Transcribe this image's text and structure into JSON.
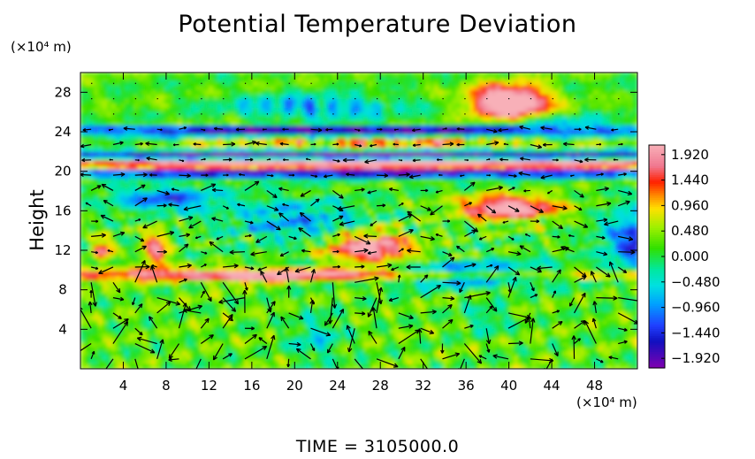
{
  "chart_data": {
    "type": "heatmap",
    "title": "Potential Temperature Deviation",
    "ylabel": "Height",
    "x_unit": "(×10⁴ m)",
    "y_unit": "(×10⁴ m)",
    "x_range": [
      0,
      52
    ],
    "y_range": [
      0,
      30
    ],
    "x_ticks": [
      4,
      8,
      12,
      16,
      20,
      24,
      28,
      32,
      36,
      40,
      44,
      48
    ],
    "y_ticks": [
      4,
      8,
      12,
      16,
      20,
      24,
      28
    ],
    "colorbar": {
      "range": [
        -2.1,
        2.1
      ],
      "ticks": [
        "1.920",
        "1.440",
        "0.960",
        "0.480",
        "0.000",
        "−0.480",
        "−0.960",
        "−1.440",
        "−1.920"
      ],
      "tick_values": [
        1.92,
        1.44,
        0.96,
        0.48,
        0.0,
        -0.48,
        -0.96,
        -1.44,
        -1.92
      ],
      "colors": [
        "#f5a0a8",
        "#ff2000",
        "#ff8800",
        "#ffe000",
        "#30e000",
        "#00e0c0",
        "#00a0ff",
        "#2020e0",
        "#8000b0"
      ]
    },
    "overlay": "wind vectors (arrows)",
    "footer": "TIME = 3105000.0"
  }
}
